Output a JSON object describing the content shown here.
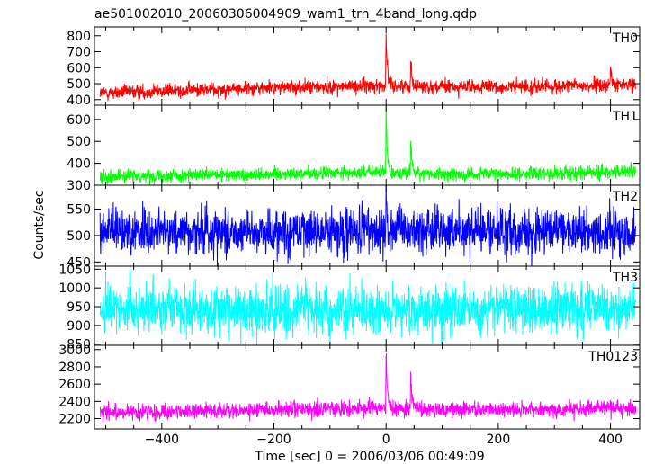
{
  "title": "ae501002010_20060306004909_wam1_trn_4band_long.qdp",
  "xlabel": "Time [sec] 0 = 2006/03/06 00:49:09",
  "ylabel": "Counts/sec",
  "x_ticks": [
    "−400",
    "−200",
    "0",
    "200",
    "400"
  ],
  "chart_data": [
    {
      "type": "line",
      "name": "TH0",
      "color": "#ff0000",
      "xlim": [
        -520,
        452
      ],
      "ylim": [
        365,
        855
      ],
      "yticks": [
        400,
        500,
        600,
        700,
        800
      ],
      "x_range": [
        -510,
        445
      ],
      "baseline": [
        [
          -510,
          440
        ],
        [
          -400,
          455
        ],
        [
          -300,
          465
        ],
        [
          -200,
          475
        ],
        [
          -100,
          480
        ],
        [
          0,
          488
        ],
        [
          100,
          480
        ],
        [
          200,
          478
        ],
        [
          300,
          482
        ],
        [
          445,
          495
        ]
      ],
      "noise_sd": 22,
      "peaks": [
        {
          "t": 0,
          "value": 840
        },
        {
          "t": 44,
          "value": 650
        },
        {
          "t": 400,
          "value": 600
        }
      ]
    },
    {
      "type": "line",
      "name": "TH1",
      "color": "#00ff00",
      "xlim": [
        -520,
        452
      ],
      "ylim": [
        300,
        665
      ],
      "yticks": [
        300,
        400,
        500,
        600
      ],
      "x_range": [
        -510,
        445
      ],
      "baseline": [
        [
          -510,
          340
        ],
        [
          -400,
          345
        ],
        [
          -300,
          345
        ],
        [
          -200,
          352
        ],
        [
          -100,
          355
        ],
        [
          0,
          360
        ],
        [
          100,
          350
        ],
        [
          200,
          350
        ],
        [
          300,
          355
        ],
        [
          445,
          362
        ]
      ],
      "noise_sd": 15,
      "peaks": [
        {
          "t": 0,
          "value": 655
        },
        {
          "t": 44,
          "value": 505
        }
      ]
    },
    {
      "type": "line",
      "name": "TH2",
      "color": "#0000ff",
      "xlim": [
        -520,
        452
      ],
      "ylim": [
        442,
        595
      ],
      "yticks": [
        450,
        500,
        550
      ],
      "x_range": [
        -510,
        445
      ],
      "baseline": [
        [
          -510,
          508
        ],
        [
          0,
          508
        ],
        [
          445,
          508
        ]
      ],
      "noise_sd": 22,
      "peaks": [
        {
          "t": 0,
          "value": 590
        }
      ]
    },
    {
      "type": "line",
      "name": "TH3",
      "color": "#00ffff",
      "xlim": [
        -520,
        452
      ],
      "ylim": [
        847,
        1058
      ],
      "yticks": [
        850,
        900,
        950,
        1000,
        1050
      ],
      "x_range": [
        -510,
        445
      ],
      "baseline": [
        [
          -510,
          945
        ],
        [
          0,
          940
        ],
        [
          445,
          945
        ]
      ],
      "noise_sd": 32,
      "peaks": []
    },
    {
      "type": "line",
      "name": "TH0123",
      "color": "#ff00ff",
      "xlim": [
        -520,
        452
      ],
      "ylim": [
        2080,
        3050
      ],
      "yticks": [
        2200,
        2400,
        2600,
        2800,
        3000
      ],
      "x_range": [
        -510,
        445
      ],
      "baseline": [
        [
          -510,
          2270
        ],
        [
          -400,
          2280
        ],
        [
          -300,
          2290
        ],
        [
          -200,
          2300
        ],
        [
          -100,
          2310
        ],
        [
          0,
          2320
        ],
        [
          100,
          2300
        ],
        [
          200,
          2300
        ],
        [
          300,
          2310
        ],
        [
          445,
          2335
        ]
      ],
      "noise_sd": 45,
      "peaks": [
        {
          "t": 0,
          "value": 2990
        },
        {
          "t": 44,
          "value": 2690
        }
      ]
    }
  ]
}
